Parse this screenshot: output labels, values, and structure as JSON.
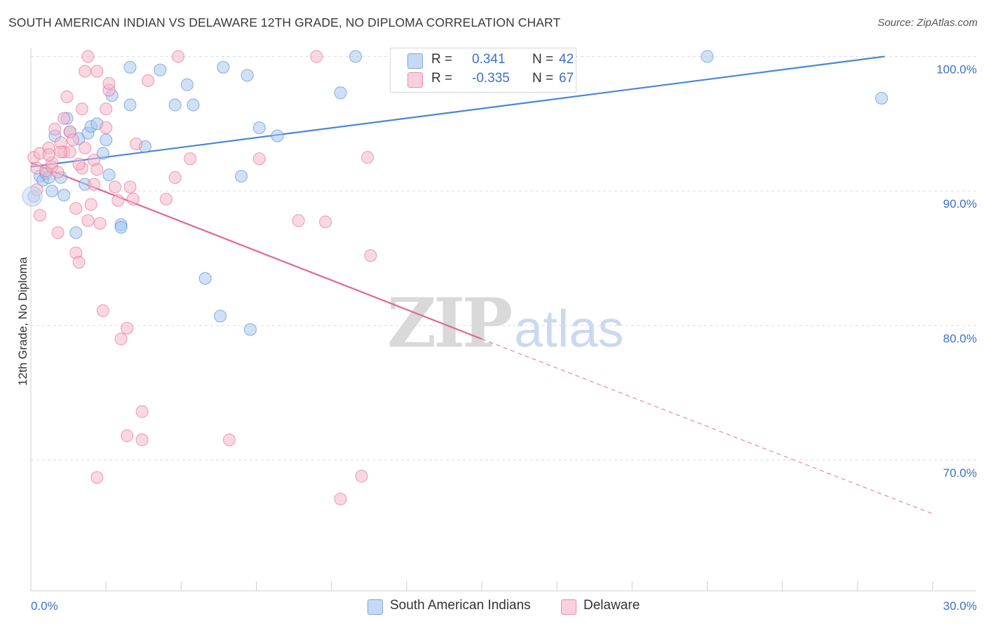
{
  "header": {
    "title": "SOUTH AMERICAN INDIAN VS DELAWARE 12TH GRADE, NO DIPLOMA CORRELATION CHART",
    "source": "Source: ZipAtlas.com"
  },
  "watermark": {
    "zip": "ZIP",
    "atlas": "atlas"
  },
  "legend": {
    "rows": [
      {
        "r_label": "R =",
        "r_value": "0.341",
        "n_label": "N =",
        "n_value": "42",
        "color": "#a9c8ef"
      },
      {
        "r_label": "R =",
        "r_value": "-0.335",
        "n_label": "N =",
        "n_value": "67",
        "color": "#f5b8cb"
      }
    ]
  },
  "bottom_legend": [
    {
      "name": "South American Indians",
      "color": "#a9c8ef"
    },
    {
      "name": "Delaware",
      "color": "#f5b8cb"
    }
  ],
  "chart_data": {
    "type": "scatter",
    "title": "SOUTH AMERICAN INDIAN VS DELAWARE 12TH GRADE, NO DIPLOMA CORRELATION CHART",
    "ylabel": "12th Grade, No Diploma",
    "xlabel": "",
    "xlim": [
      0,
      30
    ],
    "ylim": [
      61,
      101.5
    ],
    "x_tick_labels": [
      "0.0%",
      "30.0%"
    ],
    "y_tick_labels": [
      "100.0%",
      "90.0%",
      "80.0%",
      "70.0%"
    ],
    "y_ticks": [
      100,
      90,
      80,
      70
    ],
    "grid": true,
    "series": [
      {
        "name": "South American Indians",
        "color": "#4a86d6",
        "fill": "#a9c8ef",
        "trend": {
          "x0": 0,
          "y0": 91.8,
          "x1": 28.4,
          "y1": 100.0
        },
        "points": [
          [
            0.1,
            89.6
          ],
          [
            0.3,
            91.1
          ],
          [
            0.4,
            90.8
          ],
          [
            0.5,
            91.3
          ],
          [
            0.6,
            91.0
          ],
          [
            0.7,
            90.0
          ],
          [
            0.8,
            94.1
          ],
          [
            1.0,
            91.0
          ],
          [
            1.1,
            89.7
          ],
          [
            1.2,
            95.4
          ],
          [
            1.3,
            94.4
          ],
          [
            1.5,
            86.9
          ],
          [
            1.6,
            93.9
          ],
          [
            1.8,
            90.5
          ],
          [
            1.9,
            94.3
          ],
          [
            2.0,
            94.8
          ],
          [
            2.2,
            95.0
          ],
          [
            2.4,
            92.8
          ],
          [
            2.5,
            93.8
          ],
          [
            2.6,
            91.2
          ],
          [
            2.7,
            97.1
          ],
          [
            3.0,
            87.5
          ],
          [
            3.0,
            87.3
          ],
          [
            3.3,
            99.2
          ],
          [
            3.3,
            96.4
          ],
          [
            3.8,
            93.3
          ],
          [
            4.3,
            99.0
          ],
          [
            4.8,
            96.4
          ],
          [
            5.2,
            97.9
          ],
          [
            5.4,
            96.4
          ],
          [
            5.8,
            83.5
          ],
          [
            6.3,
            80.7
          ],
          [
            6.4,
            99.2
          ],
          [
            7.0,
            91.1
          ],
          [
            7.2,
            98.6
          ],
          [
            7.3,
            79.7
          ],
          [
            7.6,
            94.7
          ],
          [
            8.2,
            94.1
          ],
          [
            10.3,
            97.3
          ],
          [
            10.8,
            100.0
          ],
          [
            22.5,
            100.0
          ],
          [
            28.3,
            96.9
          ]
        ]
      },
      {
        "name": "Delaware",
        "color": "#e0688f",
        "fill": "#f5b8cb",
        "trend": {
          "x0": 0,
          "y0": 92.1,
          "x1": 15.0,
          "y1": 79.0,
          "dash_x1": 30.0,
          "dash_y1": 66.0
        },
        "points": [
          [
            0.1,
            92.5
          ],
          [
            0.2,
            91.7
          ],
          [
            0.3,
            92.8
          ],
          [
            0.3,
            88.2
          ],
          [
            0.5,
            91.5
          ],
          [
            0.6,
            93.2
          ],
          [
            0.7,
            91.8
          ],
          [
            0.7,
            92.1
          ],
          [
            0.8,
            94.6
          ],
          [
            0.9,
            91.4
          ],
          [
            0.9,
            86.9
          ],
          [
            1.0,
            93.6
          ],
          [
            1.1,
            92.9
          ],
          [
            1.1,
            95.4
          ],
          [
            1.2,
            97.0
          ],
          [
            1.3,
            92.9
          ],
          [
            1.3,
            94.4
          ],
          [
            1.4,
            93.8
          ],
          [
            1.5,
            88.7
          ],
          [
            1.5,
            85.4
          ],
          [
            1.6,
            84.7
          ],
          [
            1.7,
            91.7
          ],
          [
            1.7,
            96.1
          ],
          [
            1.8,
            98.9
          ],
          [
            1.8,
            93.2
          ],
          [
            1.9,
            87.8
          ],
          [
            1.9,
            100.0
          ],
          [
            2.1,
            92.3
          ],
          [
            2.1,
            90.5
          ],
          [
            2.2,
            91.6
          ],
          [
            2.2,
            98.9
          ],
          [
            2.3,
            87.6
          ],
          [
            2.4,
            81.1
          ],
          [
            2.5,
            94.7
          ],
          [
            2.5,
            96.1
          ],
          [
            2.6,
            97.5
          ],
          [
            2.6,
            98.0
          ],
          [
            2.8,
            90.3
          ],
          [
            2.9,
            89.3
          ],
          [
            3.0,
            79.0
          ],
          [
            3.2,
            79.8
          ],
          [
            3.2,
            71.8
          ],
          [
            3.3,
            90.3
          ],
          [
            3.4,
            89.4
          ],
          [
            3.5,
            93.5
          ],
          [
            3.7,
            73.6
          ],
          [
            3.7,
            71.5
          ],
          [
            3.9,
            98.2
          ],
          [
            4.5,
            89.4
          ],
          [
            4.8,
            91.0
          ],
          [
            4.9,
            100.0
          ],
          [
            5.3,
            92.4
          ],
          [
            2.2,
            68.7
          ],
          [
            6.6,
            71.5
          ],
          [
            7.6,
            92.4
          ],
          [
            8.9,
            87.8
          ],
          [
            9.5,
            100.0
          ],
          [
            9.8,
            87.7
          ],
          [
            10.3,
            67.1
          ],
          [
            11.0,
            68.8
          ],
          [
            11.2,
            92.5
          ],
          [
            11.3,
            85.2
          ],
          [
            0.2,
            90.1
          ],
          [
            0.6,
            92.7
          ],
          [
            1.0,
            92.9
          ],
          [
            1.6,
            92.0
          ],
          [
            2.0,
            89.0
          ]
        ]
      }
    ]
  }
}
